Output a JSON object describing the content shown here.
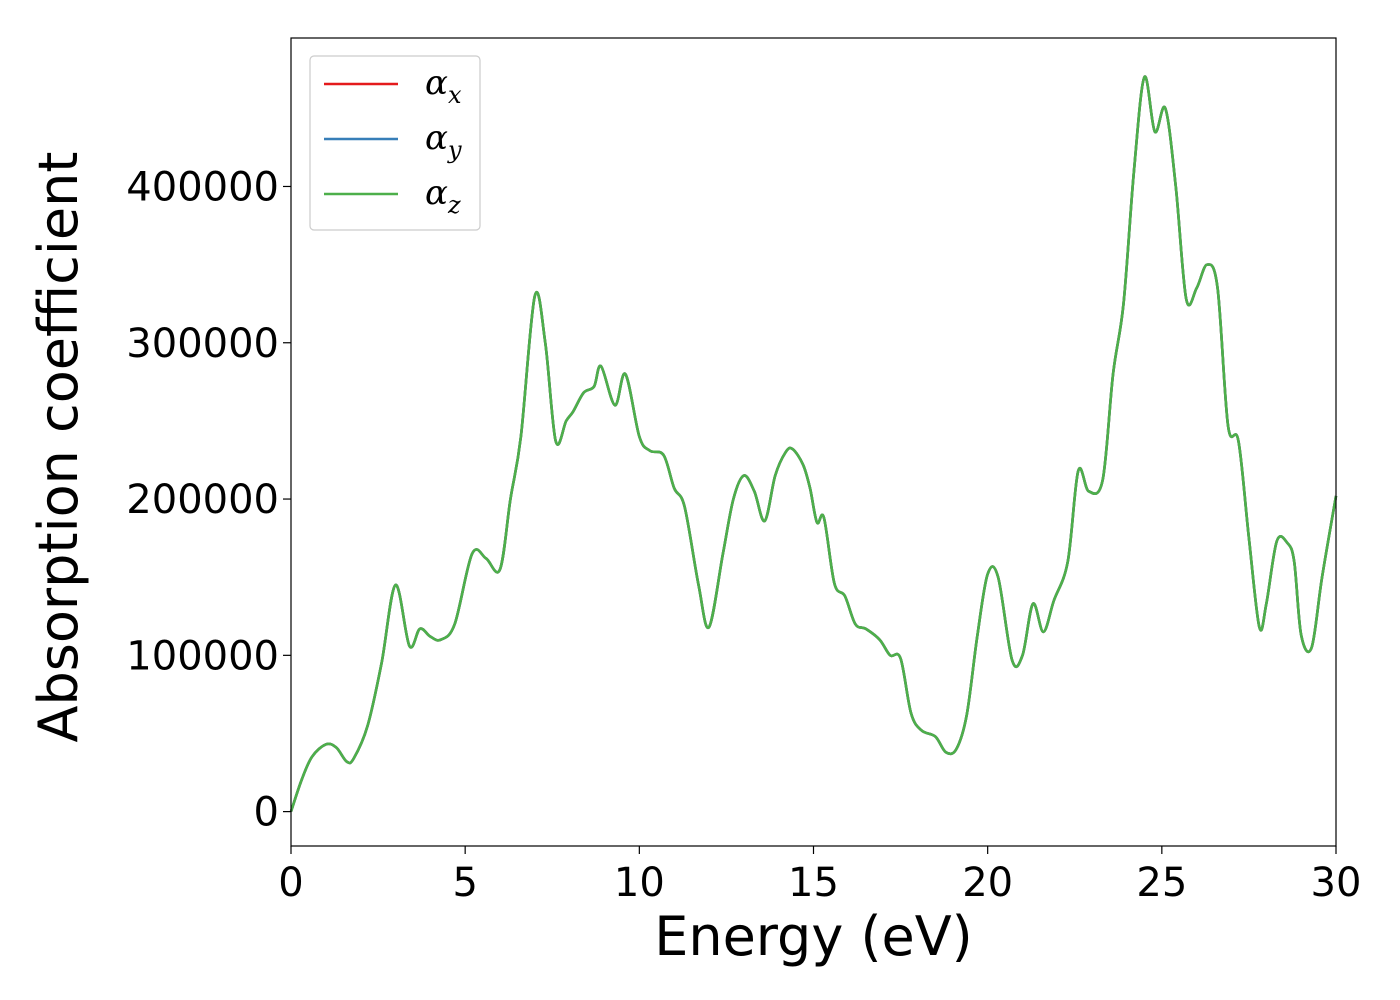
{
  "chart_data": {
    "type": "line",
    "xlabel": "Energy (eV)",
    "ylabel": "Absorption coefficient",
    "xlim": [
      0,
      30
    ],
    "ylim": [
      -22000,
      495000
    ],
    "xticks": [
      0,
      5,
      10,
      15,
      20,
      25,
      30
    ],
    "yticks": [
      0,
      100000,
      200000,
      300000,
      400000
    ],
    "grid": false,
    "legend_position": "top-left",
    "x": [
      0,
      0.3,
      0.6,
      1.0,
      1.3,
      1.6,
      1.8,
      2.2,
      2.6,
      3.0,
      3.4,
      3.7,
      4.0,
      4.3,
      4.7,
      5.2,
      5.6,
      6.0,
      6.3,
      6.6,
      7.0,
      7.3,
      7.6,
      7.9,
      8.1,
      8.4,
      8.7,
      8.9,
      9.3,
      9.6,
      10.0,
      10.3,
      10.7,
      11.0,
      11.3,
      11.7,
      12.0,
      12.4,
      12.7,
      13.0,
      13.3,
      13.6,
      13.9,
      14.2,
      14.4,
      14.7,
      14.9,
      15.1,
      15.3,
      15.6,
      15.9,
      16.2,
      16.5,
      16.9,
      17.2,
      17.5,
      17.8,
      18.1,
      18.5,
      18.8,
      19.1,
      19.4,
      19.7,
      20.0,
      20.3,
      20.7,
      21.0,
      21.3,
      21.6,
      21.9,
      22.3,
      22.6,
      22.9,
      23.3,
      23.6,
      23.9,
      24.2,
      24.5,
      24.8,
      25.1,
      25.4,
      25.7,
      26.0,
      26.3,
      26.6,
      26.9,
      27.2,
      27.5,
      27.8,
      28.0,
      28.3,
      28.6,
      28.8,
      29.0,
      29.3,
      29.6,
      30.0
    ],
    "series": [
      {
        "name": "α",
        "subscript": "x",
        "color": "#e41a1c",
        "values": [
          0,
          20000,
          35000,
          43000,
          41000,
          32000,
          34000,
          55000,
          95000,
          145000,
          106000,
          117000,
          112000,
          110000,
          120000,
          165000,
          162000,
          155000,
          200000,
          240000,
          330000,
          300000,
          237000,
          250000,
          256000,
          268000,
          272000,
          285000,
          260000,
          280000,
          240000,
          231000,
          228000,
          207000,
          195000,
          145000,
          118000,
          165000,
          200000,
          215000,
          205000,
          186000,
          215000,
          230000,
          232000,
          222000,
          207000,
          185000,
          188000,
          146000,
          138000,
          120000,
          117000,
          110000,
          100000,
          98000,
          63000,
          52000,
          48000,
          38000,
          40000,
          62000,
          112000,
          152000,
          150000,
          97000,
          100000,
          133000,
          115000,
          135000,
          160000,
          218000,
          205000,
          212000,
          280000,
          325000,
          410000,
          470000,
          435000,
          450000,
          400000,
          328000,
          335000,
          350000,
          335000,
          247000,
          237000,
          175000,
          118000,
          133000,
          173000,
          172000,
          160000,
          113000,
          105000,
          150000,
          202000
        ]
      },
      {
        "name": "α",
        "subscript": "y",
        "color": "#377eb8",
        "values": [
          0,
          20000,
          35000,
          43000,
          41000,
          32000,
          34000,
          55000,
          95000,
          145000,
          106000,
          117000,
          112000,
          110000,
          120000,
          165000,
          162000,
          155000,
          200000,
          240000,
          330000,
          300000,
          237000,
          250000,
          256000,
          268000,
          272000,
          285000,
          260000,
          280000,
          240000,
          231000,
          228000,
          207000,
          195000,
          145000,
          118000,
          165000,
          200000,
          215000,
          205000,
          186000,
          215000,
          230000,
          232000,
          222000,
          207000,
          185000,
          188000,
          146000,
          138000,
          120000,
          117000,
          110000,
          100000,
          98000,
          63000,
          52000,
          48000,
          38000,
          40000,
          62000,
          112000,
          152000,
          150000,
          97000,
          100000,
          133000,
          115000,
          135000,
          160000,
          218000,
          205000,
          212000,
          280000,
          325000,
          410000,
          470000,
          435000,
          450000,
          400000,
          328000,
          335000,
          350000,
          335000,
          247000,
          237000,
          175000,
          118000,
          133000,
          173000,
          172000,
          160000,
          113000,
          105000,
          150000,
          202000
        ]
      },
      {
        "name": "α",
        "subscript": "z",
        "color": "#4daf4a",
        "values": [
          0,
          20000,
          35000,
          43000,
          41000,
          32000,
          34000,
          55000,
          95000,
          145000,
          106000,
          117000,
          112000,
          110000,
          120000,
          165000,
          162000,
          155000,
          200000,
          240000,
          330000,
          300000,
          237000,
          250000,
          256000,
          268000,
          272000,
          285000,
          260000,
          280000,
          240000,
          231000,
          228000,
          207000,
          195000,
          145000,
          118000,
          165000,
          200000,
          215000,
          205000,
          186000,
          215000,
          230000,
          232000,
          222000,
          207000,
          185000,
          188000,
          146000,
          138000,
          120000,
          117000,
          110000,
          100000,
          98000,
          63000,
          52000,
          48000,
          38000,
          40000,
          62000,
          112000,
          152000,
          150000,
          97000,
          100000,
          133000,
          115000,
          135000,
          160000,
          218000,
          205000,
          212000,
          280000,
          325000,
          410000,
          470000,
          435000,
          450000,
          400000,
          328000,
          335000,
          350000,
          335000,
          247000,
          237000,
          175000,
          118000,
          133000,
          173000,
          172000,
          160000,
          113000,
          105000,
          150000,
          202000
        ]
      }
    ]
  }
}
